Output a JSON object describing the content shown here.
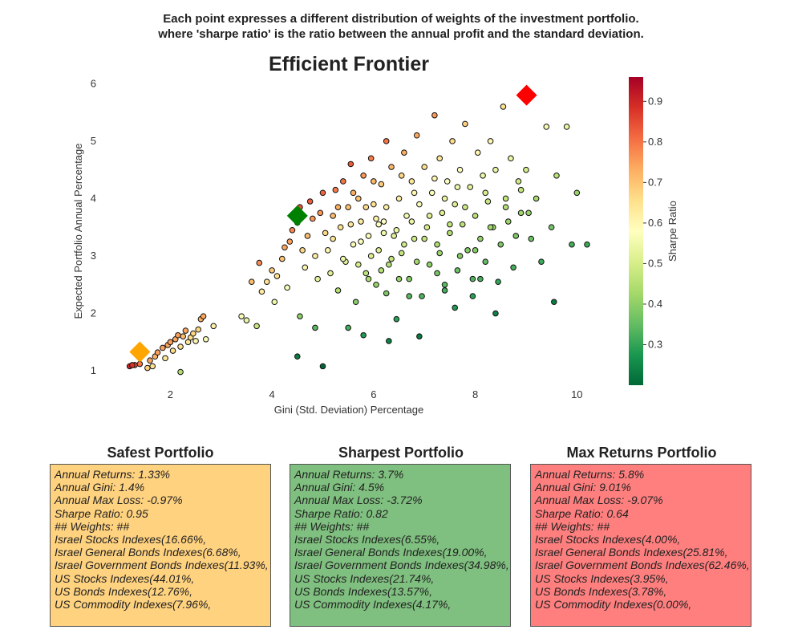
{
  "caption": {
    "line1": "Each point expresses a different distribution of weights of the investment portfolio.",
    "line2": "where 'sharpe ratio' is the ratio between the annual profit and the standard deviation."
  },
  "chart_data": {
    "type": "scatter",
    "title": "Efficient Frontier",
    "xlabel": "Gini (Std. Deviation) Percentage",
    "ylabel": "Expected Portfolio Annual Percentage",
    "xlim": [
      0.7,
      10.8
    ],
    "ylim": [
      0.75,
      6.2
    ],
    "xticks": [
      2,
      4,
      6,
      8,
      10
    ],
    "yticks": [
      1,
      2,
      3,
      4,
      5,
      6
    ],
    "grid": false,
    "colorbar": {
      "label": "Sharpe Ratio",
      "range": [
        0.2,
        0.96
      ],
      "ticks": [
        0.3,
        0.4,
        0.5,
        0.6,
        0.7,
        0.8,
        0.9
      ],
      "colormap": "RdYlGn_r"
    },
    "scatter_points": [
      [
        1.2,
        1.08,
        0.9
      ],
      [
        1.3,
        1.1,
        0.84
      ],
      [
        1.4,
        1.12,
        0.8
      ],
      [
        1.55,
        1.05,
        0.68
      ],
      [
        1.6,
        1.18,
        0.74
      ],
      [
        1.7,
        1.25,
        0.73
      ],
      [
        1.75,
        1.32,
        0.75
      ],
      [
        1.85,
        1.4,
        0.75
      ],
      [
        1.9,
        1.22,
        0.64
      ],
      [
        1.95,
        1.45,
        0.74
      ],
      [
        2.0,
        1.5,
        0.75
      ],
      [
        2.05,
        1.35,
        0.66
      ],
      [
        2.1,
        1.55,
        0.74
      ],
      [
        2.15,
        1.62,
        0.75
      ],
      [
        2.2,
        1.42,
        0.65
      ],
      [
        2.25,
        1.6,
        0.71
      ],
      [
        2.3,
        1.7,
        0.74
      ],
      [
        2.35,
        1.5,
        0.64
      ],
      [
        2.4,
        1.58,
        0.66
      ],
      [
        2.45,
        1.65,
        0.67
      ],
      [
        2.5,
        1.52,
        0.61
      ],
      [
        2.55,
        1.72,
        0.67
      ],
      [
        2.6,
        1.9,
        0.73
      ],
      [
        2.7,
        1.55,
        0.57
      ],
      [
        2.65,
        1.95,
        0.74
      ],
      [
        1.25,
        1.1,
        0.88
      ],
      [
        1.65,
        1.08,
        0.65
      ],
      [
        2.2,
        0.98,
        0.45
      ],
      [
        2.85,
        1.78,
        0.62
      ],
      [
        3.4,
        1.95,
        0.57
      ],
      [
        3.5,
        1.88,
        0.54
      ],
      [
        3.6,
        2.55,
        0.71
      ],
      [
        3.7,
        1.78,
        0.48
      ],
      [
        3.75,
        2.88,
        0.77
      ],
      [
        3.8,
        2.38,
        0.63
      ],
      [
        3.9,
        2.55,
        0.65
      ],
      [
        4.0,
        2.75,
        0.69
      ],
      [
        4.05,
        2.2,
        0.54
      ],
      [
        4.1,
        2.65,
        0.65
      ],
      [
        4.2,
        2.95,
        0.7
      ],
      [
        4.25,
        3.15,
        0.74
      ],
      [
        4.3,
        2.45,
        0.57
      ],
      [
        4.35,
        3.25,
        0.75
      ],
      [
        4.4,
        3.45,
        0.78
      ],
      [
        4.5,
        3.58,
        0.8
      ],
      [
        4.55,
        3.85,
        0.84
      ],
      [
        4.6,
        3.1,
        0.67
      ],
      [
        4.65,
        2.8,
        0.6
      ],
      [
        4.7,
        3.35,
        0.71
      ],
      [
        4.75,
        3.95,
        0.83
      ],
      [
        4.8,
        3.65,
        0.76
      ],
      [
        4.85,
        3.0,
        0.62
      ],
      [
        4.9,
        2.6,
        0.53
      ],
      [
        4.95,
        3.75,
        0.76
      ],
      [
        5.0,
        4.1,
        0.82
      ],
      [
        4.5,
        1.25,
        0.23
      ],
      [
        4.55,
        1.95,
        0.4
      ],
      [
        5.0,
        1.08,
        0.2
      ],
      [
        4.85,
        1.75,
        0.34
      ],
      [
        5.05,
        3.4,
        0.67
      ],
      [
        5.1,
        3.1,
        0.6
      ],
      [
        5.15,
        2.7,
        0.52
      ],
      [
        5.2,
        3.7,
        0.71
      ],
      [
        5.25,
        4.15,
        0.79
      ],
      [
        5.3,
        2.4,
        0.45
      ],
      [
        5.35,
        3.5,
        0.65
      ],
      [
        5.4,
        4.3,
        0.8
      ],
      [
        5.45,
        2.9,
        0.53
      ],
      [
        5.5,
        3.85,
        0.7
      ],
      [
        5.55,
        4.6,
        0.83
      ],
      [
        5.6,
        3.2,
        0.57
      ],
      [
        5.65,
        2.2,
        0.39
      ],
      [
        5.7,
        4.0,
        0.7
      ],
      [
        5.75,
        3.6,
        0.63
      ],
      [
        5.8,
        4.4,
        0.76
      ],
      [
        5.85,
        2.7,
        0.46
      ],
      [
        5.9,
        3.35,
        0.57
      ],
      [
        5.95,
        4.7,
        0.79
      ],
      [
        6.0,
        3.9,
        0.65
      ],
      [
        6.05,
        2.5,
        0.41
      ],
      [
        6.1,
        3.1,
        0.51
      ],
      [
        6.15,
        4.25,
        0.69
      ],
      [
        6.2,
        3.6,
        0.58
      ],
      [
        6.25,
        5.0,
        0.8
      ],
      [
        6.3,
        2.85,
        0.45
      ],
      [
        6.35,
        4.55,
        0.72
      ],
      [
        6.4,
        3.35,
        0.52
      ],
      [
        6.45,
        1.9,
        0.29
      ],
      [
        6.5,
        4.0,
        0.62
      ],
      [
        6.55,
        3.05,
        0.47
      ],
      [
        6.6,
        4.8,
        0.73
      ],
      [
        6.65,
        3.7,
        0.56
      ],
      [
        6.7,
        2.6,
        0.39
      ],
      [
        6.75,
        4.3,
        0.64
      ],
      [
        6.8,
        3.3,
        0.49
      ],
      [
        6.85,
        5.1,
        0.74
      ],
      [
        6.9,
        3.9,
        0.57
      ],
      [
        6.95,
        2.3,
        0.33
      ],
      [
        7.0,
        4.55,
        0.65
      ],
      [
        7.05,
        3.5,
        0.5
      ],
      [
        7.1,
        2.85,
        0.4
      ],
      [
        7.15,
        4.1,
        0.57
      ],
      [
        7.2,
        5.45,
        0.76
      ],
      [
        7.25,
        3.2,
        0.44
      ],
      [
        7.3,
        4.7,
        0.64
      ],
      [
        7.35,
        3.75,
        0.51
      ],
      [
        7.4,
        2.5,
        0.34
      ],
      [
        7.45,
        4.3,
        0.58
      ],
      [
        7.5,
        3.4,
        0.45
      ],
      [
        7.55,
        5.0,
        0.66
      ],
      [
        7.6,
        3.9,
        0.51
      ],
      [
        7.65,
        2.75,
        0.36
      ],
      [
        7.7,
        4.5,
        0.58
      ],
      [
        7.75,
        3.55,
        0.46
      ],
      [
        7.8,
        5.3,
        0.68
      ],
      [
        7.85,
        3.1,
        0.39
      ],
      [
        7.9,
        4.2,
        0.53
      ],
      [
        7.95,
        2.6,
        0.33
      ],
      [
        8.0,
        3.7,
        0.46
      ],
      [
        8.05,
        4.8,
        0.6
      ],
      [
        8.1,
        3.3,
        0.41
      ],
      [
        8.15,
        4.4,
        0.54
      ],
      [
        8.2,
        2.9,
        0.35
      ],
      [
        8.25,
        3.95,
        0.48
      ],
      [
        8.3,
        5.0,
        0.6
      ],
      [
        8.35,
        3.5,
        0.42
      ],
      [
        8.4,
        4.5,
        0.54
      ],
      [
        8.45,
        2.55,
        0.3
      ],
      [
        8.5,
        3.2,
        0.38
      ],
      [
        8.55,
        5.6,
        0.65
      ],
      [
        8.6,
        4.0,
        0.47
      ],
      [
        8.65,
        3.6,
        0.42
      ],
      [
        8.7,
        4.7,
        0.54
      ],
      [
        8.75,
        2.8,
        0.32
      ],
      [
        8.8,
        3.35,
        0.38
      ],
      [
        8.85,
        4.3,
        0.49
      ],
      [
        8.9,
        3.75,
        0.42
      ],
      [
        9.0,
        4.5,
        0.5
      ],
      [
        9.1,
        3.3,
        0.36
      ],
      [
        9.2,
        4.0,
        0.43
      ],
      [
        9.3,
        2.9,
        0.31
      ],
      [
        9.4,
        5.25,
        0.56
      ],
      [
        9.5,
        3.5,
        0.37
      ],
      [
        9.6,
        4.4,
        0.46
      ],
      [
        9.8,
        5.25,
        0.54
      ],
      [
        9.9,
        3.2,
        0.32
      ],
      [
        10.0,
        4.1,
        0.41
      ],
      [
        10.2,
        3.2,
        0.31
      ],
      [
        9.55,
        2.2,
        0.23
      ],
      [
        8.4,
        2.0,
        0.24
      ],
      [
        7.6,
        2.1,
        0.28
      ],
      [
        6.9,
        1.6,
        0.23
      ],
      [
        6.3,
        1.52,
        0.24
      ],
      [
        5.8,
        1.62,
        0.28
      ],
      [
        5.5,
        1.75,
        0.32
      ],
      [
        6.05,
        3.65,
        0.61
      ],
      [
        6.45,
        3.45,
        0.54
      ],
      [
        6.6,
        3.2,
        0.49
      ],
      [
        6.2,
        3.4,
        0.55
      ],
      [
        5.95,
        3.0,
        0.51
      ],
      [
        6.35,
        2.95,
        0.47
      ],
      [
        6.75,
        3.6,
        0.54
      ],
      [
        7.1,
        3.7,
        0.52
      ],
      [
        5.75,
        3.25,
        0.57
      ],
      [
        5.55,
        3.55,
        0.64
      ],
      [
        6.85,
        2.9,
        0.43
      ],
      [
        7.3,
        3.05,
        0.42
      ],
      [
        5.4,
        2.95,
        0.55
      ],
      [
        6.15,
        2.75,
        0.45
      ],
      [
        6.5,
        2.6,
        0.41
      ],
      [
        5.7,
        2.85,
        0.5
      ],
      [
        5.2,
        3.3,
        0.64
      ],
      [
        7.5,
        3.55,
        0.47
      ],
      [
        7.8,
        3.85,
        0.49
      ],
      [
        8.0,
        3.1,
        0.39
      ],
      [
        7.4,
        4.0,
        0.54
      ],
      [
        6.8,
        4.1,
        0.6
      ],
      [
        6.0,
        4.3,
        0.72
      ],
      [
        5.6,
        4.1,
        0.73
      ],
      [
        5.85,
        3.85,
        0.66
      ],
      [
        6.25,
        3.85,
        0.62
      ],
      [
        6.55,
        4.4,
        0.67
      ],
      [
        7.2,
        4.35,
        0.6
      ],
      [
        7.65,
        4.2,
        0.55
      ],
      [
        8.2,
        4.1,
        0.5
      ],
      [
        7.0,
        3.3,
        0.47
      ],
      [
        6.1,
        3.55,
        0.58
      ],
      [
        5.3,
        3.85,
        0.73
      ],
      [
        5.9,
        2.6,
        0.44
      ],
      [
        6.7,
        2.3,
        0.34
      ],
      [
        7.25,
        2.7,
        0.37
      ],
      [
        7.7,
        3.0,
        0.39
      ],
      [
        8.3,
        3.5,
        0.42
      ],
      [
        8.6,
        3.85,
        0.45
      ],
      [
        8.9,
        4.15,
        0.47
      ],
      [
        9.05,
        3.75,
        0.41
      ],
      [
        8.1,
        2.6,
        0.32
      ],
      [
        7.95,
        2.3,
        0.29
      ],
      [
        7.4,
        2.4,
        0.32
      ],
      [
        6.25,
        2.35,
        0.38
      ]
    ],
    "highlights": [
      {
        "name": "Safest Portfolio",
        "x": 1.4,
        "y": 1.33,
        "color": "#ffa500"
      },
      {
        "name": "Sharpest Portfolio",
        "x": 4.5,
        "y": 3.7,
        "color": "#008000"
      },
      {
        "name": "Max Returns Portfolio",
        "x": 9.01,
        "y": 5.8,
        "color": "#ff0000"
      }
    ]
  },
  "portfolios": [
    {
      "title": "Safest Portfolio",
      "bg": "#ffd27f",
      "lines": [
        "Annual Returns: 1.33%",
        "Annual Gini: 1.4%",
        "Annual Max Loss: -0.97%",
        "Sharpe Ratio: 0.95",
        "## Weights: ##",
        "Israel Stocks Indexes(16.66%,",
        "Israel General Bonds Indexes(6.68%,",
        "Israel Government Bonds Indexes(11.93%,",
        "US Stocks Indexes(44.01%,",
        "US Bonds Indexes(12.76%,",
        "US Commodity Indexes(7.96%,"
      ]
    },
    {
      "title": "Sharpest Portfolio",
      "bg": "#7fbf7f",
      "lines": [
        "Annual Returns: 3.7%",
        "Annual Gini: 4.5%",
        "Annual Max Loss: -3.72%",
        "Sharpe Ratio: 0.82",
        "## Weights: ##",
        "Israel Stocks Indexes(6.55%,",
        "Israel General Bonds Indexes(19.00%,",
        "Israel Government Bonds Indexes(34.98%,",
        "US Stocks Indexes(21.74%,",
        "US Bonds Indexes(13.57%,",
        "US Commodity Indexes(4.17%,"
      ]
    },
    {
      "title": "Max Returns Portfolio",
      "bg": "#ff7f7f",
      "lines": [
        "Annual Returns: 5.8%",
        "Annual Gini: 9.01%",
        "Annual Max Loss: -9.07%",
        "Sharpe Ratio: 0.64",
        "## Weights: ##",
        "Israel Stocks Indexes(4.00%,",
        "Israel General Bonds Indexes(25.81%,",
        "Israel Government Bonds Indexes(62.46%,",
        "US Stocks Indexes(3.95%,",
        "US Bonds Indexes(3.78%,",
        "US Commodity Indexes(0.00%,"
      ]
    }
  ]
}
